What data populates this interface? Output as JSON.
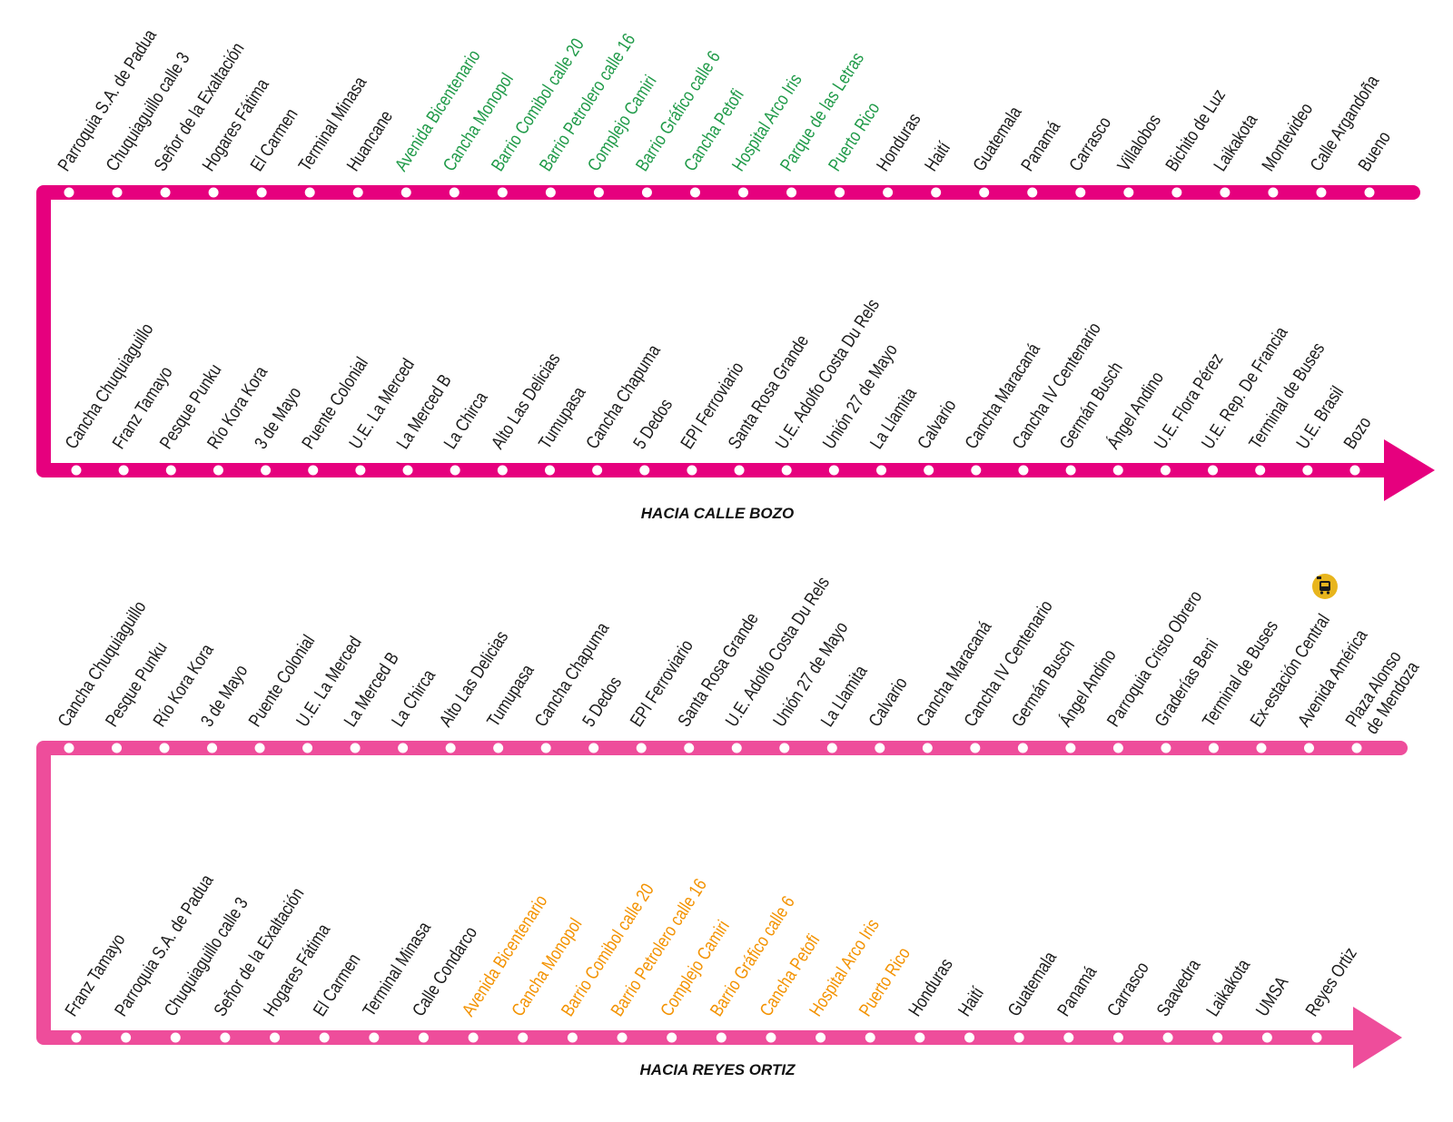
{
  "colors": {
    "route_1": "#e6007e",
    "route_2": "#ee4d9b",
    "text_default": "#1a1a1a",
    "text_green": "#1f9a48",
    "text_orange": "#f39200",
    "bus_icon_bg": "#e8b51d"
  },
  "icons": [
    "bus-station-icon"
  ],
  "routes": [
    {
      "id": "route-1",
      "direction_label": "HACIA CALLE BOZO",
      "color_key": "route_1",
      "top_stops": [
        {
          "name": "Parroquia S.A. de Padua",
          "color": "text_default"
        },
        {
          "name": "Chuquiaguillo calle 3",
          "color": "text_default"
        },
        {
          "name": "Señor de la Exaltación",
          "color": "text_default"
        },
        {
          "name": "Hogares Fátima",
          "color": "text_default"
        },
        {
          "name": "El Carmen",
          "color": "text_default"
        },
        {
          "name": "Terminal Minasa",
          "color": "text_default"
        },
        {
          "name": "Huancane",
          "color": "text_default"
        },
        {
          "name": "Avenida Bicentenario",
          "color": "text_green"
        },
        {
          "name": "Cancha Monopol",
          "color": "text_green"
        },
        {
          "name": "Barrio Comibol calle 20",
          "color": "text_green"
        },
        {
          "name": "Barrio Petrolero calle 16",
          "color": "text_green"
        },
        {
          "name": "Complejo Camiri",
          "color": "text_green"
        },
        {
          "name": "Barrio Gráfico calle 6",
          "color": "text_green"
        },
        {
          "name": "Cancha Petofi",
          "color": "text_green"
        },
        {
          "name": "Hospital Arco Iris",
          "color": "text_green"
        },
        {
          "name": "Parque de las Letras",
          "color": "text_green"
        },
        {
          "name": "Puerto Rico",
          "color": "text_green"
        },
        {
          "name": "Honduras",
          "color": "text_default"
        },
        {
          "name": "Haití",
          "color": "text_default"
        },
        {
          "name": "Guatemala",
          "color": "text_default"
        },
        {
          "name": "Panamá",
          "color": "text_default"
        },
        {
          "name": "Carrasco",
          "color": "text_default"
        },
        {
          "name": "Villalobos",
          "color": "text_default"
        },
        {
          "name": "Bichito de Luz",
          "color": "text_default"
        },
        {
          "name": "Laikakota",
          "color": "text_default"
        },
        {
          "name": "Montevideo",
          "color": "text_default"
        },
        {
          "name": "Calle Argandoña",
          "color": "text_default"
        },
        {
          "name": "Bueno",
          "color": "text_default"
        }
      ],
      "bottom_stops": [
        {
          "name": "Cancha Chuquiaguillo",
          "color": "text_default"
        },
        {
          "name": "Franz Tamayo",
          "color": "text_default"
        },
        {
          "name": "Pesque Punku",
          "color": "text_default"
        },
        {
          "name": "Río Kora Kora",
          "color": "text_default"
        },
        {
          "name": "3 de Mayo",
          "color": "text_default"
        },
        {
          "name": "Puente Colonial",
          "color": "text_default"
        },
        {
          "name": "U.E. La Merced",
          "color": "text_default"
        },
        {
          "name": "La Merced B",
          "color": "text_default"
        },
        {
          "name": "La Chirca",
          "color": "text_default"
        },
        {
          "name": "Alto Las Delicias",
          "color": "text_default"
        },
        {
          "name": "Tumupasa",
          "color": "text_default"
        },
        {
          "name": "Cancha Chapuma",
          "color": "text_default"
        },
        {
          "name": "5 Dedos",
          "color": "text_default"
        },
        {
          "name": "EPI Ferroviario",
          "color": "text_default"
        },
        {
          "name": "Santa Rosa Grande",
          "color": "text_default"
        },
        {
          "name": "U.E. Adolfo Costa Du Rels",
          "color": "text_default"
        },
        {
          "name": "Unión 27 de Mayo",
          "color": "text_default"
        },
        {
          "name": "La Llamita",
          "color": "text_default"
        },
        {
          "name": "Calvario",
          "color": "text_default"
        },
        {
          "name": "Cancha Maracaná",
          "color": "text_default"
        },
        {
          "name": "Cancha IV Centenario",
          "color": "text_default"
        },
        {
          "name": "Germán Busch",
          "color": "text_default"
        },
        {
          "name": "Ángel Andino",
          "color": "text_default"
        },
        {
          "name": "U.E. Flora Pérez",
          "color": "text_default"
        },
        {
          "name": "U.E. Rep. De Francia",
          "color": "text_default"
        },
        {
          "name": "Terminal de Buses",
          "color": "text_default"
        },
        {
          "name": "U.E. Brasil",
          "color": "text_default"
        },
        {
          "name": "Bozo",
          "color": "text_default"
        }
      ]
    },
    {
      "id": "route-2",
      "direction_label": "HACIA REYES ORTIZ",
      "color_key": "route_2",
      "top_stops": [
        {
          "name": "Cancha Chuquiaguillo",
          "color": "text_default"
        },
        {
          "name": "Pesque Punku",
          "color": "text_default"
        },
        {
          "name": "Río Kora Kora",
          "color": "text_default"
        },
        {
          "name": "3 de Mayo",
          "color": "text_default"
        },
        {
          "name": "Puente Colonial",
          "color": "text_default"
        },
        {
          "name": "U.E. La Merced",
          "color": "text_default"
        },
        {
          "name": "La Merced B",
          "color": "text_default"
        },
        {
          "name": "La Chirca",
          "color": "text_default"
        },
        {
          "name": "Alto Las Delicias",
          "color": "text_default"
        },
        {
          "name": "Tumupasa",
          "color": "text_default"
        },
        {
          "name": "Cancha Chapuma",
          "color": "text_default"
        },
        {
          "name": "5 Dedos",
          "color": "text_default"
        },
        {
          "name": "EPI Ferroviario",
          "color": "text_default"
        },
        {
          "name": "Santa Rosa Grande",
          "color": "text_default"
        },
        {
          "name": "U.E. Adolfo Costa Du Rels",
          "color": "text_default"
        },
        {
          "name": "Unión 27 de Mayo",
          "color": "text_default"
        },
        {
          "name": "La Llamita",
          "color": "text_default"
        },
        {
          "name": "Calvario",
          "color": "text_default"
        },
        {
          "name": "Cancha Maracaná",
          "color": "text_default"
        },
        {
          "name": "Cancha IV Centenario",
          "color": "text_default"
        },
        {
          "name": "Germán Busch",
          "color": "text_default"
        },
        {
          "name": "Ángel Andino",
          "color": "text_default"
        },
        {
          "name": "Parroquia Cristo Obrero",
          "color": "text_default"
        },
        {
          "name": "Graderías Beni",
          "color": "text_default"
        },
        {
          "name": "Terminal de Buses",
          "color": "text_default"
        },
        {
          "name": "Ex-estación Central",
          "color": "text_default",
          "icon": "bus-station-icon"
        },
        {
          "name": "Avenida América",
          "color": "text_default"
        },
        {
          "name": "Plaza Alonso",
          "name_line2": "de Mendoza",
          "color": "text_default"
        }
      ],
      "bottom_stops": [
        {
          "name": "Franz Tamayo",
          "color": "text_default"
        },
        {
          "name": "Parroquia S.A. de Padua",
          "color": "text_default"
        },
        {
          "name": "Chuquiaguillo calle 3",
          "color": "text_default"
        },
        {
          "name": "Señor de la Exaltación",
          "color": "text_default"
        },
        {
          "name": "Hogares Fátima",
          "color": "text_default"
        },
        {
          "name": "El Carmen",
          "color": "text_default"
        },
        {
          "name": "Terminal Minasa",
          "color": "text_default"
        },
        {
          "name": "Calle Condarco",
          "color": "text_default"
        },
        {
          "name": "Avenida Bicentenario",
          "color": "text_orange"
        },
        {
          "name": "Cancha Monopol",
          "color": "text_orange"
        },
        {
          "name": "Barrio Comibol calle 20",
          "color": "text_orange"
        },
        {
          "name": "Barrio Petrolero calle 16",
          "color": "text_orange"
        },
        {
          "name": "Complejo Camiri",
          "color": "text_orange"
        },
        {
          "name": "Barrio Gráfico calle 6",
          "color": "text_orange"
        },
        {
          "name": "Cancha Petofi",
          "color": "text_orange"
        },
        {
          "name": "Hospital Arco Iris",
          "color": "text_orange"
        },
        {
          "name": "Puerto Rico",
          "color": "text_orange"
        },
        {
          "name": "Honduras",
          "color": "text_default"
        },
        {
          "name": "Haití",
          "color": "text_default"
        },
        {
          "name": "Guatemala",
          "color": "text_default"
        },
        {
          "name": "Panamá",
          "color": "text_default"
        },
        {
          "name": "Carrasco",
          "color": "text_default"
        },
        {
          "name": "Saavedra",
          "color": "text_default"
        },
        {
          "name": "Laikakota",
          "color": "text_default"
        },
        {
          "name": "UMSA",
          "color": "text_default"
        },
        {
          "name": "Reyes Ortiz",
          "color": "text_default"
        }
      ]
    }
  ]
}
